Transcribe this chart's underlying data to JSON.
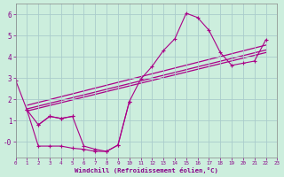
{
  "xlabel": "Windchill (Refroidissement éolien,°C)",
  "background_color": "#cceedd",
  "grid_color": "#aacccc",
  "line_color": "#aa0088",
  "xlim": [
    0,
    23
  ],
  "ylim": [
    -0.75,
    6.5
  ],
  "yticks": [
    0,
    1,
    2,
    3,
    4,
    5,
    6
  ],
  "xticks": [
    0,
    1,
    2,
    3,
    4,
    5,
    6,
    7,
    8,
    9,
    10,
    11,
    12,
    13,
    14,
    15,
    16,
    17,
    18,
    19,
    20,
    21,
    22,
    23
  ],
  "series": [
    {
      "x": [
        0,
        1,
        2,
        3,
        4,
        5,
        6,
        7,
        8,
        9,
        10,
        11,
        12,
        13,
        14,
        15,
        16,
        17,
        18,
        19,
        20,
        21,
        22
      ],
      "y": [
        2.9,
        1.5,
        0.8,
        1.2,
        1.1,
        1.2,
        -0.2,
        -0.35,
        -0.45,
        -0.15,
        1.9,
        2.95,
        3.55,
        4.3,
        4.85,
        6.05,
        5.85,
        5.25,
        4.2,
        3.6,
        3.7,
        3.8,
        4.8
      ]
    },
    {
      "x": [
        1,
        2,
        3,
        4,
        5,
        6,
        7,
        8,
        9,
        10
      ],
      "y": [
        1.5,
        -0.2,
        -0.2,
        -0.2,
        -0.3,
        -0.35,
        -0.45,
        -0.45,
        -0.15,
        1.9
      ]
    },
    {
      "x": [
        2,
        3,
        4,
        5
      ],
      "y": [
        0.8,
        1.2,
        1.1,
        1.2
      ]
    }
  ],
  "reg_lines": [
    {
      "x": [
        1,
        22
      ],
      "y": [
        1.45,
        4.2
      ]
    },
    {
      "x": [
        1,
        22
      ],
      "y": [
        1.55,
        4.32
      ]
    },
    {
      "x": [
        1,
        22
      ],
      "y": [
        1.72,
        4.55
      ]
    }
  ]
}
